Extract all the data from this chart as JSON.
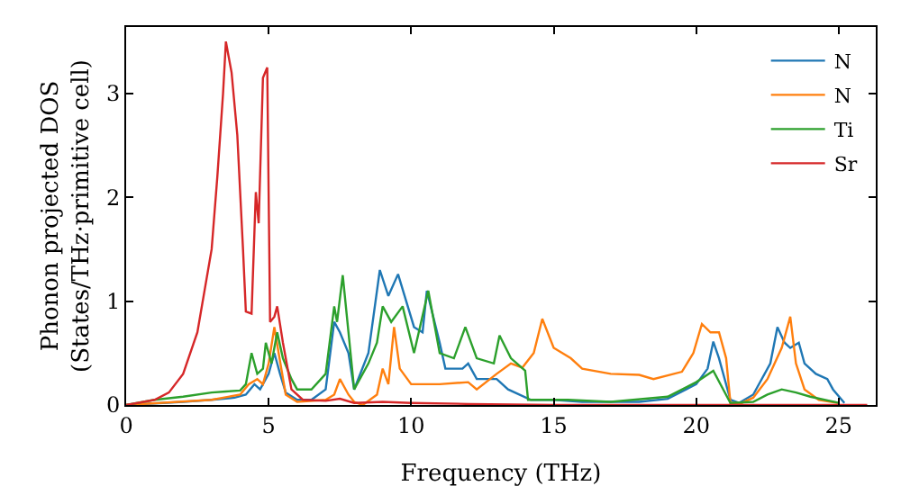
{
  "chart_data": {
    "type": "line",
    "xlabel": "Frequency (THz)",
    "ylabel": "Phonon projected DOS\n(States/THz·primitive cell)",
    "xlim": [
      0,
      26.3
    ],
    "ylim": [
      0,
      3.64
    ],
    "xticks": [
      0,
      5,
      10,
      15,
      20,
      25
    ],
    "yticks": [
      0,
      1,
      2,
      3
    ],
    "legend": "top right",
    "marker": "none",
    "line_style": "solid",
    "series": [
      {
        "name": "N",
        "color": "#1f77b4",
        "x": [
          0,
          2,
          3,
          3.8,
          4.2,
          4.5,
          4.7,
          5.0,
          5.2,
          5.4,
          5.6,
          6,
          6.5,
          7,
          7.3,
          7.5,
          7.8,
          8.0,
          8.5,
          8.9,
          9.2,
          9.54,
          10.1,
          10.4,
          10.55,
          11.0,
          11.2,
          11.8,
          12.0,
          12.3,
          13.0,
          13.4,
          14.2,
          15,
          16,
          18,
          19,
          20,
          20.4,
          20.6,
          20.8,
          21.2,
          21.5,
          22,
          22.6,
          22.85,
          23.1,
          23.3,
          23.6,
          23.8,
          24.2,
          24.6,
          24.8,
          25.2
        ],
        "values": [
          0,
          0.03,
          0.05,
          0.07,
          0.1,
          0.2,
          0.15,
          0.3,
          0.5,
          0.3,
          0.12,
          0.05,
          0.05,
          0.15,
          0.8,
          0.7,
          0.5,
          0.15,
          0.5,
          1.3,
          1.05,
          1.26,
          0.75,
          0.7,
          1.1,
          0.6,
          0.35,
          0.35,
          0.4,
          0.25,
          0.25,
          0.15,
          0.05,
          0.05,
          0.03,
          0.03,
          0.06,
          0.2,
          0.35,
          0.61,
          0.45,
          0.05,
          0.02,
          0.1,
          0.4,
          0.75,
          0.6,
          0.55,
          0.6,
          0.4,
          0.3,
          0.25,
          0.15,
          0.02
        ]
      },
      {
        "name": "N",
        "color": "#ff7f0e",
        "x": [
          0,
          3,
          4,
          4.3,
          4.6,
          4.8,
          5.0,
          5.2,
          5.35,
          5.6,
          6,
          7,
          7.3,
          7.5,
          7.8,
          8,
          8.3,
          8.8,
          9.0,
          9.2,
          9.4,
          9.6,
          10,
          11,
          12,
          12.3,
          13,
          13.5,
          13.9,
          14.3,
          14.6,
          15.0,
          15.6,
          16,
          17,
          18,
          18.5,
          19.5,
          19.9,
          20.2,
          20.5,
          20.8,
          21.05,
          21.2,
          21.6,
          22,
          22.5,
          23,
          23.3,
          23.5,
          23.8,
          24.3,
          25
        ],
        "values": [
          0,
          0.05,
          0.1,
          0.2,
          0.25,
          0.2,
          0.4,
          0.75,
          0.5,
          0.1,
          0.03,
          0.05,
          0.1,
          0.25,
          0.1,
          0.03,
          0.0,
          0.1,
          0.35,
          0.2,
          0.75,
          0.35,
          0.2,
          0.2,
          0.22,
          0.15,
          0.3,
          0.4,
          0.36,
          0.5,
          0.83,
          0.55,
          0.45,
          0.35,
          0.3,
          0.29,
          0.25,
          0.32,
          0.5,
          0.78,
          0.7,
          0.7,
          0.45,
          0.02,
          0.02,
          0.07,
          0.25,
          0.55,
          0.85,
          0.4,
          0.15,
          0.05,
          0.02
        ]
      },
      {
        "name": "Ti",
        "color": "#2ca02c",
        "x": [
          0,
          1,
          2,
          3,
          3.5,
          4,
          4.2,
          4.4,
          4.6,
          4.8,
          4.9,
          5.1,
          5.3,
          5.5,
          5.8,
          6,
          6.5,
          7,
          7.3,
          7.4,
          7.6,
          7.8,
          8,
          8.5,
          8.8,
          9.0,
          9.3,
          9.7,
          10.1,
          10.6,
          11.0,
          11.5,
          11.9,
          12.3,
          12.9,
          13.1,
          13.5,
          14.0,
          14.1,
          15.5,
          17,
          19,
          20,
          20.6,
          21.2,
          22,
          22.5,
          23,
          23.5,
          24,
          25
        ],
        "values": [
          0,
          0.05,
          0.08,
          0.12,
          0.13,
          0.14,
          0.2,
          0.5,
          0.3,
          0.35,
          0.6,
          0.4,
          0.7,
          0.45,
          0.25,
          0.15,
          0.15,
          0.3,
          0.95,
          0.8,
          1.25,
          0.7,
          0.15,
          0.4,
          0.6,
          0.95,
          0.8,
          0.95,
          0.5,
          1.1,
          0.5,
          0.45,
          0.75,
          0.45,
          0.4,
          0.67,
          0.45,
          0.33,
          0.05,
          0.05,
          0.03,
          0.08,
          0.22,
          0.33,
          0.02,
          0.03,
          0.1,
          0.15,
          0.12,
          0.08,
          0.02
        ]
      },
      {
        "name": "Sr",
        "color": "#d62728",
        "x": [
          0,
          1,
          1.5,
          2,
          2.5,
          3,
          3.2,
          3.4,
          3.5,
          3.7,
          3.9,
          4.1,
          4.2,
          4.4,
          4.55,
          4.65,
          4.8,
          4.95,
          5.05,
          5.2,
          5.3,
          5.5,
          5.8,
          6.2,
          7,
          7.5,
          8,
          9,
          10,
          12,
          15,
          26
        ],
        "values": [
          0,
          0.05,
          0.12,
          0.3,
          0.7,
          1.5,
          2.2,
          3.0,
          3.5,
          3.2,
          2.6,
          1.5,
          0.9,
          0.88,
          2.05,
          1.75,
          3.15,
          3.25,
          0.8,
          0.85,
          0.95,
          0.6,
          0.15,
          0.05,
          0.04,
          0.06,
          0.02,
          0.03,
          0.02,
          0.01,
          0.0,
          0
        ]
      }
    ]
  }
}
